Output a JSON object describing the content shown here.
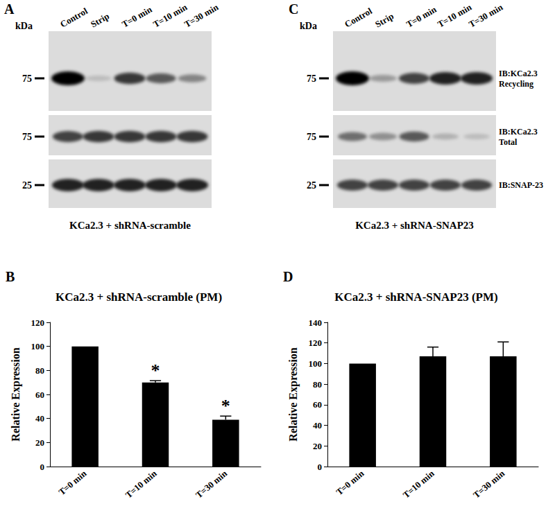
{
  "chart_data": [
    {
      "panel": "B",
      "type": "bar",
      "title": "KCa2.3 + shRNA-scramble (PM)",
      "categories": [
        "T=0 min",
        "T=10 min",
        "T=30 min"
      ],
      "values": [
        100,
        70,
        39
      ],
      "errors": [
        0,
        1.5,
        3
      ],
      "annotations": [
        null,
        "*",
        "*"
      ],
      "color": "#000000",
      "y_label": "Relative Expression",
      "ylim": [
        0,
        120
      ],
      "yticks": [
        0,
        20,
        40,
        60,
        80,
        100,
        120
      ],
      "grid": false
    },
    {
      "panel": "D",
      "type": "bar",
      "title": "KCa2.3 + shRNA-SNAP23 (PM)",
      "categories": [
        "T=0 min",
        "T=10 min",
        "T=30 min"
      ],
      "values": [
        100,
        107,
        107
      ],
      "errors": [
        0,
        9,
        14
      ],
      "annotations": [
        null,
        null,
        null
      ],
      "color": "#000000",
      "y_label": "Relative Expression",
      "ylim": [
        0,
        140
      ],
      "yticks": [
        0,
        20,
        40,
        60,
        80,
        100,
        120,
        140
      ],
      "grid": false
    }
  ],
  "blots": [
    {
      "panel": "A",
      "unit": "kDa",
      "lanes": [
        "Control",
        "Strip",
        "T=0 min",
        "T=10 min",
        "T=30 min"
      ],
      "rows": [
        {
          "marker": 75,
          "intensity": [
            1.0,
            0.15,
            0.75,
            0.6,
            0.4
          ]
        },
        {
          "marker": 75,
          "intensity": [
            0.7,
            0.75,
            0.75,
            0.75,
            0.75
          ]
        },
        {
          "marker": 25,
          "intensity": [
            0.85,
            0.85,
            0.85,
            0.85,
            0.85
          ]
        }
      ],
      "caption": "KCa2.3 + shRNA-scramble"
    },
    {
      "panel": "C",
      "unit": "kDa",
      "lanes": [
        "Control",
        "Strip",
        "T=0 min",
        "T=10 min",
        "T=30 min"
      ],
      "rows": [
        {
          "marker": 75,
          "label": [
            "IB:KCa2.3",
            "Recycling"
          ],
          "intensity": [
            1.0,
            0.3,
            0.7,
            0.85,
            0.85
          ]
        },
        {
          "marker": 75,
          "label": [
            "IB:KCa2.3",
            "Total"
          ],
          "intensity": [
            0.5,
            0.35,
            0.6,
            0.2,
            0.15
          ]
        },
        {
          "marker": 25,
          "label": [
            "IB:SNAP-23"
          ],
          "intensity": [
            0.7,
            0.7,
            0.7,
            0.7,
            0.7
          ]
        }
      ],
      "caption": "KCa2.3 + shRNA-SNAP23"
    }
  ]
}
